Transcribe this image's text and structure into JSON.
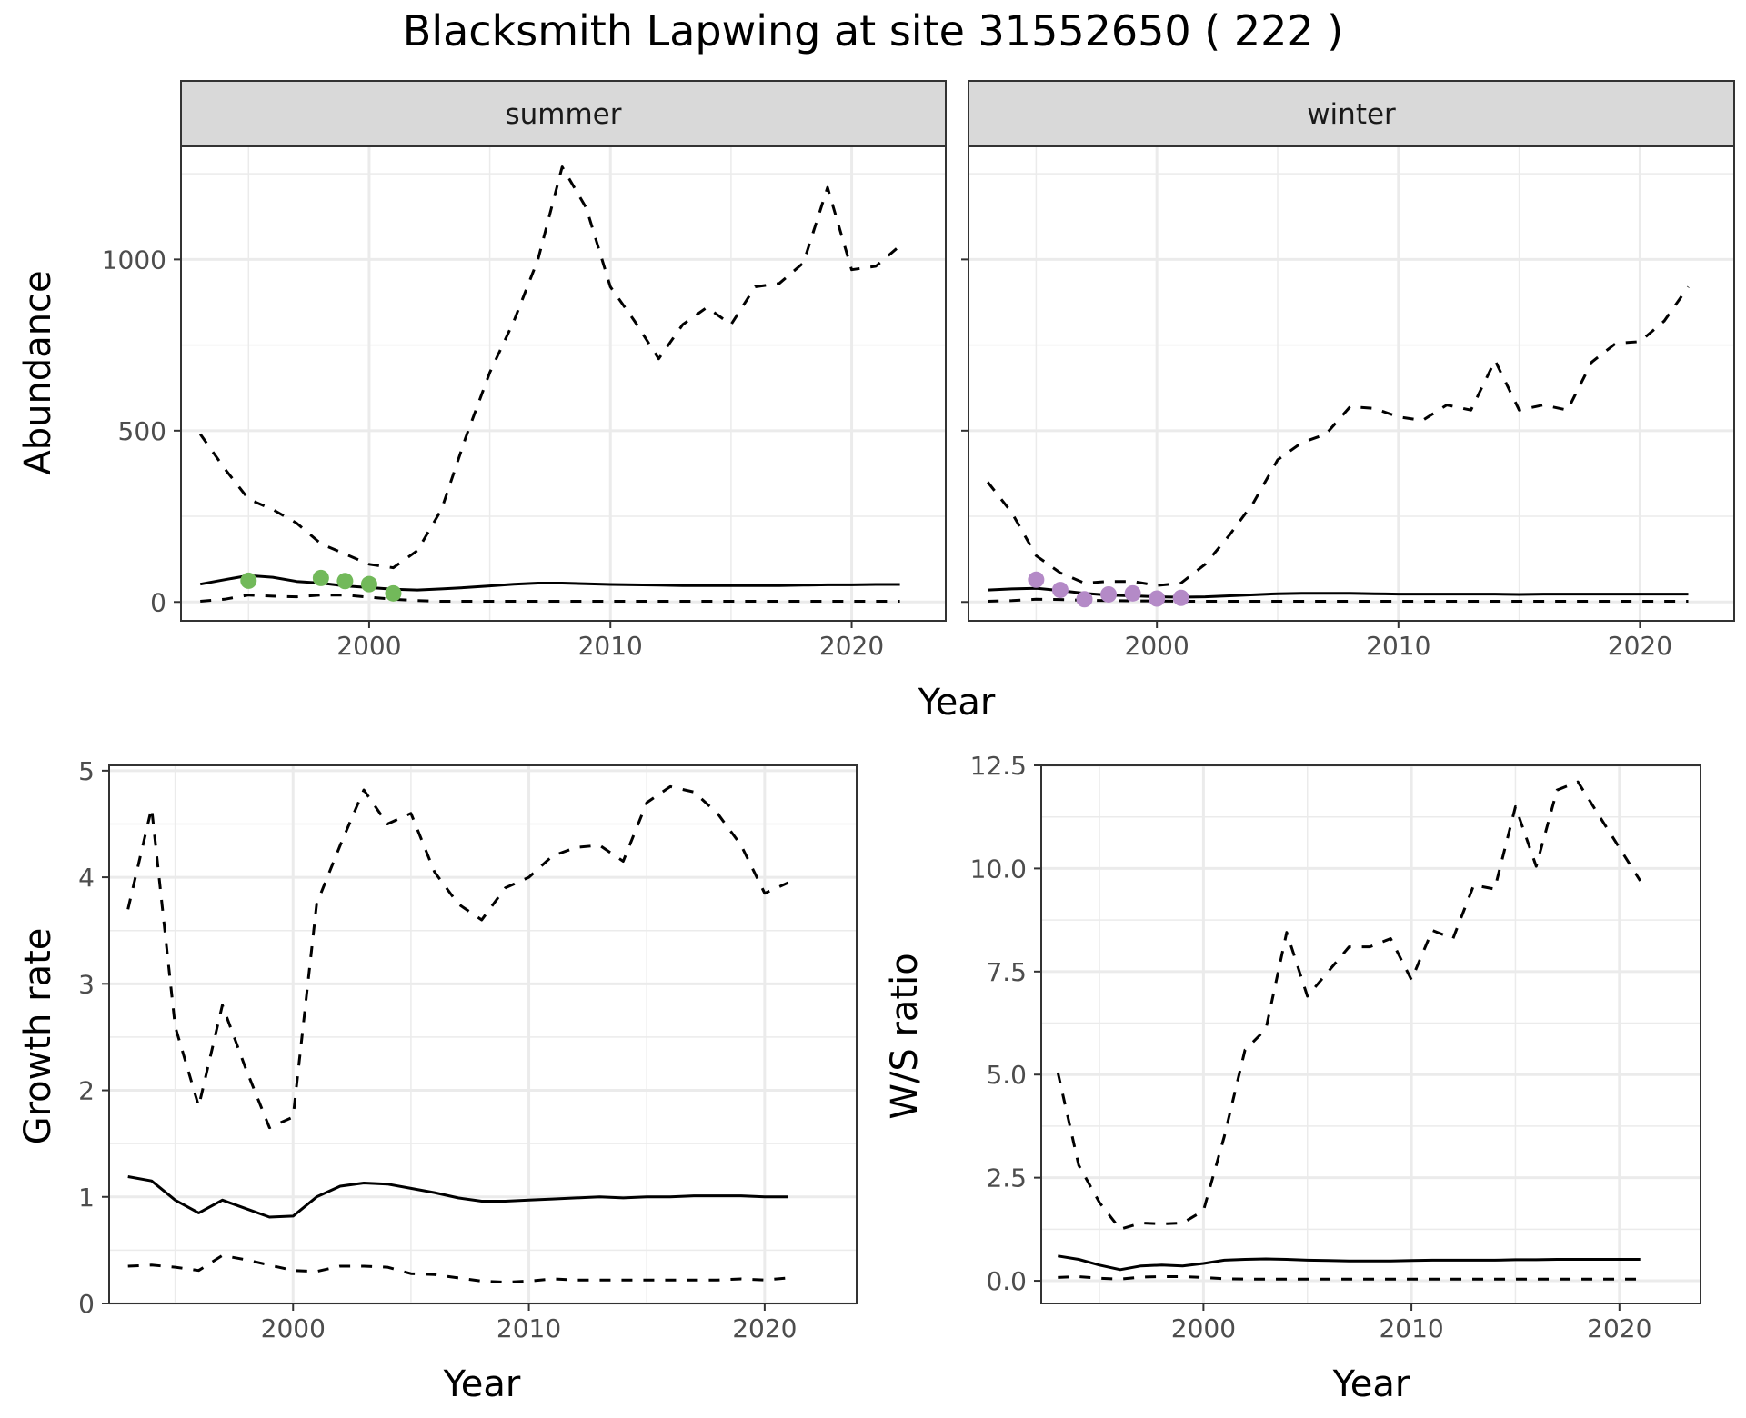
{
  "title": "Blacksmith Lapwing at site 31552650 ( 222 )",
  "colors": {
    "summer_points": "#72b95a",
    "winter_points": "#b48ac7",
    "lines": "#000000",
    "strip_bg": "#d9d9d9",
    "grid": "#ebebeb"
  },
  "chart_data": [
    {
      "type": "line",
      "panel": "summer",
      "strip_label": "summer",
      "xlabel": "Year",
      "ylabel": "Abundance",
      "xlim": [
        1992.2,
        2023.9
      ],
      "ylim": [
        -55,
        1330
      ],
      "xticks": [
        2000,
        2010,
        2020
      ],
      "yticks": [
        0,
        500,
        1000
      ],
      "grid": true,
      "series": [
        {
          "role": "estimate",
          "style": "solid",
          "x": [
            1993,
            1994,
            1995,
            1996,
            1997,
            1998,
            1999,
            2000,
            2001,
            2002,
            2003,
            2004,
            2005,
            2006,
            2007,
            2008,
            2009,
            2010,
            2011,
            2012,
            2013,
            2014,
            2015,
            2016,
            2017,
            2018,
            2019,
            2020,
            2021,
            2022
          ],
          "y": [
            52,
            65,
            77,
            72,
            60,
            55,
            47,
            42,
            37,
            35,
            38,
            42,
            47,
            52,
            55,
            55,
            53,
            51,
            50,
            49,
            48,
            48,
            48,
            48,
            48,
            49,
            50,
            50,
            51,
            51
          ]
        },
        {
          "role": "upper",
          "style": "dashed",
          "x": [
            1993,
            1994,
            1995,
            1996,
            1997,
            1998,
            1999,
            2000,
            2001,
            2002,
            2003,
            2004,
            2005,
            2006,
            2007,
            2008,
            2009,
            2010,
            2011,
            2012,
            2013,
            2014,
            2015,
            2016,
            2017,
            2018,
            2019,
            2020,
            2021,
            2022
          ],
          "y": [
            490,
            390,
            300,
            270,
            230,
            170,
            140,
            110,
            100,
            150,
            270,
            480,
            670,
            820,
            1000,
            1270,
            1150,
            920,
            820,
            710,
            810,
            860,
            810,
            920,
            930,
            990,
            1210,
            970,
            980,
            1040
          ]
        },
        {
          "role": "lower",
          "style": "dashed",
          "x": [
            1993,
            1994,
            1995,
            1996,
            1997,
            1998,
            1999,
            2000,
            2001,
            2002,
            2003,
            2004,
            2005,
            2006,
            2007,
            2008,
            2009,
            2010,
            2011,
            2012,
            2013,
            2014,
            2015,
            2016,
            2017,
            2018,
            2019,
            2020,
            2021,
            2022
          ],
          "y": [
            2,
            8,
            20,
            17,
            15,
            20,
            20,
            14,
            8,
            4,
            2,
            2,
            2,
            2,
            2,
            2,
            2,
            2,
            2,
            2,
            2,
            2,
            2,
            2,
            2,
            2,
            2,
            2,
            2,
            2
          ]
        },
        {
          "role": "observed",
          "style": "points",
          "x": [
            1995,
            1998,
            1999,
            2000,
            2001
          ],
          "y": [
            62,
            70,
            61,
            52,
            25
          ]
        }
      ]
    },
    {
      "type": "line",
      "panel": "winter",
      "strip_label": "winter",
      "xlabel": "Year",
      "ylabel": "",
      "xlim": [
        1992.2,
        2023.9
      ],
      "ylim": [
        -55,
        1330
      ],
      "xticks": [
        2000,
        2010,
        2020
      ],
      "yticks": [
        0,
        500,
        1000
      ],
      "grid": true,
      "series": [
        {
          "role": "estimate",
          "style": "solid",
          "x": [
            1993,
            1994,
            1995,
            1996,
            1997,
            1998,
            1999,
            2000,
            2001,
            2002,
            2003,
            2004,
            2005,
            2006,
            2007,
            2008,
            2009,
            2010,
            2011,
            2012,
            2013,
            2014,
            2015,
            2016,
            2017,
            2018,
            2019,
            2020,
            2021,
            2022
          ],
          "y": [
            35,
            38,
            40,
            33,
            25,
            20,
            18,
            15,
            14,
            15,
            18,
            21,
            24,
            25,
            25,
            25,
            24,
            23,
            23,
            23,
            23,
            23,
            22,
            23,
            23,
            23,
            23,
            23,
            23,
            23
          ]
        },
        {
          "role": "upper",
          "style": "dashed",
          "x": [
            1993,
            1994,
            1995,
            1996,
            1997,
            1998,
            1999,
            2000,
            2001,
            2002,
            2003,
            2004,
            2005,
            2006,
            2007,
            2008,
            2009,
            2010,
            2011,
            2012,
            2013,
            2014,
            2015,
            2016,
            2017,
            2018,
            2019,
            2020,
            2021,
            2022
          ],
          "y": [
            350,
            260,
            135,
            85,
            55,
            60,
            60,
            48,
            55,
            110,
            195,
            290,
            415,
            465,
            490,
            570,
            565,
            540,
            530,
            575,
            560,
            705,
            560,
            575,
            560,
            700,
            755,
            760,
            820,
            920
          ]
        },
        {
          "role": "lower",
          "style": "dashed",
          "x": [
            1993,
            1994,
            1995,
            1996,
            1997,
            1998,
            1999,
            2000,
            2001,
            2002,
            2003,
            2004,
            2005,
            2006,
            2007,
            2008,
            2009,
            2010,
            2011,
            2012,
            2013,
            2014,
            2015,
            2016,
            2017,
            2018,
            2019,
            2020,
            2021,
            2022
          ],
          "y": [
            2,
            4,
            8,
            7,
            5,
            4,
            3,
            3,
            2,
            2,
            2,
            2,
            2,
            2,
            2,
            2,
            2,
            2,
            2,
            2,
            2,
            2,
            2,
            2,
            2,
            2,
            2,
            2,
            2,
            2
          ]
        },
        {
          "role": "observed",
          "style": "points",
          "x": [
            1995,
            1996,
            1997,
            1998,
            1999,
            2000,
            2001
          ],
          "y": [
            65,
            35,
            8,
            22,
            25,
            10,
            12
          ]
        }
      ]
    },
    {
      "type": "line",
      "panel": "growth",
      "strip_label": "",
      "xlabel": "Year",
      "ylabel": "Growth rate",
      "xlim": [
        1992.2,
        2023.9
      ],
      "ylim": [
        0,
        5.05
      ],
      "xticks": [
        2000,
        2010,
        2020
      ],
      "yticks": [
        0,
        1,
        2,
        3,
        4,
        5
      ],
      "grid": true,
      "series": [
        {
          "role": "estimate",
          "style": "solid",
          "x": [
            1993,
            1994,
            1995,
            1996,
            1997,
            1998,
            1999,
            2000,
            2001,
            2002,
            2003,
            2004,
            2005,
            2006,
            2007,
            2008,
            2009,
            2010,
            2011,
            2012,
            2013,
            2014,
            2015,
            2016,
            2017,
            2018,
            2019,
            2020,
            2021
          ],
          "y": [
            1.19,
            1.15,
            0.97,
            0.85,
            0.97,
            0.89,
            0.81,
            0.82,
            1.0,
            1.1,
            1.13,
            1.12,
            1.08,
            1.04,
            0.99,
            0.96,
            0.96,
            0.97,
            0.98,
            0.99,
            1.0,
            0.99,
            1.0,
            1.0,
            1.01,
            1.01,
            1.01,
            1.0,
            1.0
          ]
        },
        {
          "role": "upper",
          "style": "dashed",
          "x": [
            1993,
            1994,
            1995,
            1996,
            1997,
            1998,
            1999,
            2000,
            2001,
            2002,
            2003,
            2004,
            2005,
            2006,
            2007,
            2008,
            2009,
            2010,
            2011,
            2012,
            2013,
            2014,
            2015,
            2016,
            2017,
            2018,
            2019,
            2020,
            2021
          ],
          "y": [
            3.7,
            4.65,
            2.6,
            1.85,
            2.8,
            2.2,
            1.65,
            1.75,
            3.75,
            4.3,
            4.82,
            4.5,
            4.6,
            4.05,
            3.75,
            3.6,
            3.9,
            4.0,
            4.2,
            4.28,
            4.3,
            4.15,
            4.7,
            4.85,
            4.8,
            4.6,
            4.3,
            3.85,
            3.95
          ]
        },
        {
          "role": "lower",
          "style": "dashed",
          "x": [
            1993,
            1994,
            1995,
            1996,
            1997,
            1998,
            1999,
            2000,
            2001,
            2002,
            2003,
            2004,
            2005,
            2006,
            2007,
            2008,
            2009,
            2010,
            2011,
            2012,
            2013,
            2014,
            2015,
            2016,
            2017,
            2018,
            2019,
            2020,
            2021
          ],
          "y": [
            0.35,
            0.36,
            0.34,
            0.31,
            0.45,
            0.41,
            0.36,
            0.31,
            0.3,
            0.35,
            0.35,
            0.34,
            0.28,
            0.27,
            0.24,
            0.21,
            0.2,
            0.21,
            0.23,
            0.22,
            0.22,
            0.22,
            0.22,
            0.22,
            0.22,
            0.22,
            0.23,
            0.22,
            0.24
          ]
        }
      ]
    },
    {
      "type": "line",
      "panel": "ratio",
      "strip_label": "",
      "xlabel": "Year",
      "ylabel": "W/S ratio",
      "xlim": [
        1992.2,
        2023.9
      ],
      "ylim": [
        -0.55,
        12.5
      ],
      "xticks": [
        2000,
        2010,
        2020
      ],
      "yticks": [
        0.0,
        2.5,
        5.0,
        7.5,
        10.0,
        12.5
      ],
      "ytick_labels": [
        "0.0",
        "2.5",
        "5.0",
        "7.5",
        "10.0",
        "12.5"
      ],
      "grid": true,
      "series": [
        {
          "role": "estimate",
          "style": "solid",
          "x": [
            1993,
            1994,
            1995,
            1996,
            1997,
            1998,
            1999,
            2000,
            2001,
            2002,
            2003,
            2004,
            2005,
            2006,
            2007,
            2008,
            2009,
            2010,
            2011,
            2012,
            2013,
            2014,
            2015,
            2016,
            2017,
            2018,
            2019,
            2020,
            2021
          ],
          "y": [
            0.6,
            0.52,
            0.38,
            0.27,
            0.36,
            0.38,
            0.36,
            0.42,
            0.5,
            0.52,
            0.53,
            0.52,
            0.5,
            0.49,
            0.48,
            0.48,
            0.48,
            0.49,
            0.5,
            0.5,
            0.5,
            0.5,
            0.51,
            0.51,
            0.52,
            0.52,
            0.52,
            0.52,
            0.52
          ]
        },
        {
          "role": "upper",
          "style": "dashed",
          "x": [
            1993,
            1994,
            1995,
            1996,
            1997,
            1998,
            1999,
            2000,
            2001,
            2002,
            2003,
            2004,
            2005,
            2006,
            2007,
            2008,
            2009,
            2010,
            2011,
            2012,
            2013,
            2014,
            2015,
            2016,
            2017,
            2018,
            2019,
            2020,
            2021
          ],
          "y": [
            5.05,
            2.8,
            1.9,
            1.25,
            1.4,
            1.38,
            1.4,
            1.7,
            3.5,
            5.6,
            6.1,
            8.45,
            6.9,
            7.5,
            8.1,
            8.1,
            8.3,
            7.3,
            8.5,
            8.3,
            9.6,
            9.5,
            11.5,
            10.05,
            11.9,
            12.1,
            11.3,
            10.5,
            9.7
          ]
        },
        {
          "role": "lower",
          "style": "dashed",
          "x": [
            1993,
            1994,
            1995,
            1996,
            1997,
            1998,
            1999,
            2000,
            2001,
            2002,
            2003,
            2004,
            2005,
            2006,
            2007,
            2008,
            2009,
            2010,
            2011,
            2012,
            2013,
            2014,
            2015,
            2016,
            2017,
            2018,
            2019,
            2020,
            2021
          ],
          "y": [
            0.08,
            0.1,
            0.06,
            0.04,
            0.09,
            0.1,
            0.1,
            0.08,
            0.05,
            0.04,
            0.04,
            0.04,
            0.04,
            0.04,
            0.04,
            0.04,
            0.04,
            0.04,
            0.04,
            0.04,
            0.04,
            0.04,
            0.04,
            0.04,
            0.04,
            0.04,
            0.04,
            0.04,
            0.04
          ]
        }
      ]
    }
  ]
}
